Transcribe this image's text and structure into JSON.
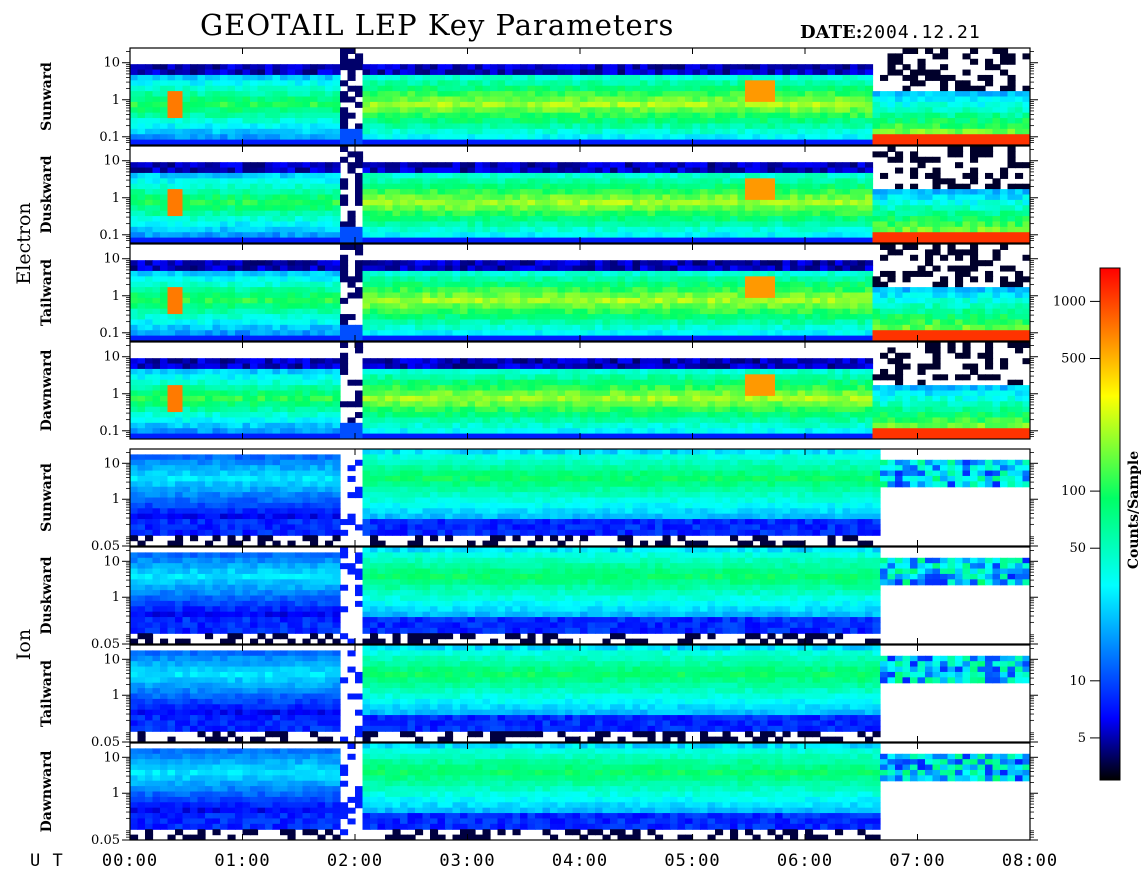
{
  "header": {
    "title": "GEOTAIL LEP Key Parameters",
    "date_label": "DATE:",
    "date_value": "2004.12.21"
  },
  "time_axis": {
    "label": "U T",
    "ticks": [
      "00:00",
      "01:00",
      "02:00",
      "03:00",
      "04:00",
      "05:00",
      "06:00",
      "07:00",
      "08:00"
    ]
  },
  "groups": [
    {
      "name": "Electron",
      "panels": [
        0,
        1,
        2,
        3
      ]
    },
    {
      "name": "Ion",
      "panels": [
        4,
        5,
        6,
        7
      ]
    }
  ],
  "colorbar": {
    "label": "Counts/Sample",
    "ticks": [
      "1000",
      "500",
      "100",
      "50",
      "10",
      "5"
    ],
    "tick_values": [
      1000,
      500,
      100,
      50,
      10,
      5
    ],
    "range": [
      3,
      1500
    ],
    "scale": "log",
    "colors": [
      "#000000",
      "#0000ff",
      "#00ffff",
      "#00ff66",
      "#ffff00",
      "#ff0000"
    ]
  },
  "chart_data": {
    "type": "heatmap",
    "title": "GEOTAIL LEP Key Parameters",
    "x_range_hours": [
      0,
      8
    ],
    "xlabel": "U T",
    "panels": [
      {
        "species": "Electron",
        "direction": "Sunward",
        "y_ticks": [
          "10",
          "1",
          "0.1"
        ],
        "y_tick_values": [
          10,
          1,
          0.1
        ],
        "ylim": [
          0.06,
          25
        ],
        "y_scale": "log",
        "dropout_hours": [
          1.85,
          2.05
        ],
        "dense_from_hours": 6.6,
        "fill_from_hours": 6.6,
        "fill_to_hours": 8.0
      },
      {
        "species": "Electron",
        "direction": "Duskward",
        "y_ticks": [
          "10",
          "1",
          "0.1"
        ],
        "y_tick_values": [
          10,
          1,
          0.1
        ],
        "ylim": [
          0.06,
          25
        ],
        "y_scale": "log",
        "dropout_hours": [
          1.85,
          2.05
        ],
        "dense_from_hours": 6.6,
        "fill_from_hours": 6.6,
        "fill_to_hours": 8.0
      },
      {
        "species": "Electron",
        "direction": "Tailward",
        "y_ticks": [
          "10",
          "1",
          "0.1"
        ],
        "y_tick_values": [
          10,
          1,
          0.1
        ],
        "ylim": [
          0.06,
          25
        ],
        "y_scale": "log",
        "dropout_hours": [
          1.85,
          2.05
        ],
        "dense_from_hours": 6.6,
        "fill_from_hours": 6.6,
        "fill_to_hours": 8.0
      },
      {
        "species": "Electron",
        "direction": "Dawnward",
        "y_ticks": [
          "10",
          "1",
          "0.1"
        ],
        "y_tick_values": [
          10,
          1,
          0.1
        ],
        "ylim": [
          0.06,
          25
        ],
        "y_scale": "log",
        "dropout_hours": [
          1.85,
          2.05
        ],
        "dense_from_hours": 6.6,
        "fill_from_hours": 6.6,
        "fill_to_hours": 8.0
      },
      {
        "species": "Ion",
        "direction": "Sunward",
        "y_ticks": [
          "10",
          "1",
          "0.05"
        ],
        "y_tick_values": [
          10,
          1,
          0.05
        ],
        "ylim": [
          0.05,
          25
        ],
        "y_scale": "log",
        "dropout_hours": [
          1.85,
          2.05
        ],
        "data_end_hours": 6.7,
        "sparse_from_hours": 6.7
      },
      {
        "species": "Ion",
        "direction": "Duskward",
        "y_ticks": [
          "10",
          "1",
          "0.05"
        ],
        "y_tick_values": [
          10,
          1,
          0.05
        ],
        "ylim": [
          0.05,
          25
        ],
        "y_scale": "log",
        "dropout_hours": [
          1.85,
          2.05
        ],
        "data_end_hours": 6.7,
        "sparse_from_hours": 6.7
      },
      {
        "species": "Ion",
        "direction": "Tailward",
        "y_ticks": [
          "10",
          "1",
          "0.05"
        ],
        "y_tick_values": [
          10,
          1,
          0.05
        ],
        "ylim": [
          0.05,
          25
        ],
        "y_scale": "log",
        "dropout_hours": [
          1.85,
          2.05
        ],
        "data_end_hours": 6.7,
        "sparse_from_hours": 6.7
      },
      {
        "species": "Ion",
        "direction": "Dawnward",
        "y_ticks": [
          "10",
          "1",
          "0.05"
        ],
        "y_tick_values": [
          10,
          1,
          0.05
        ],
        "ylim": [
          0.05,
          25
        ],
        "y_scale": "log",
        "dropout_hours": [
          1.85,
          2.05
        ],
        "data_end_hours": 6.7,
        "sparse_from_hours": 6.7
      }
    ]
  }
}
